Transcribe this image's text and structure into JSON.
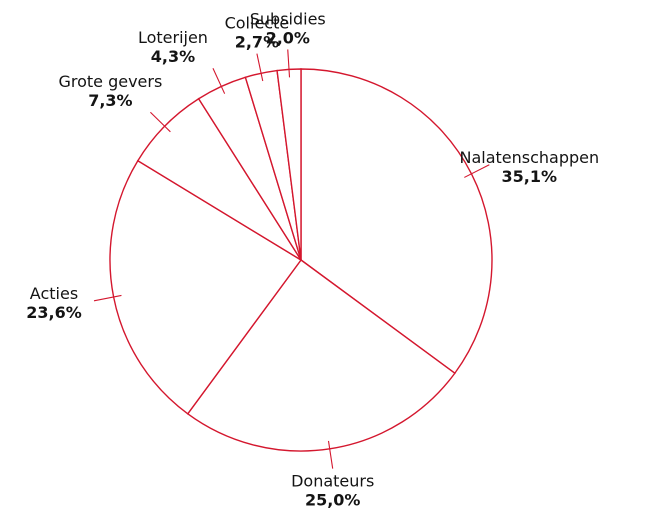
{
  "chart_data": {
    "type": "pie",
    "title": "",
    "start": "12 o'clock, clockwise",
    "colors": {
      "stroke": "#d4172e",
      "fill": "#ffffff",
      "text": "#141414"
    },
    "slices": [
      {
        "label": "Nalatenschappen",
        "value": 35.1,
        "value_label": "35,1%"
      },
      {
        "label": "Donateurs",
        "value": 25.0,
        "value_label": "25,0%"
      },
      {
        "label": "Acties",
        "value": 23.6,
        "value_label": "23,6%"
      },
      {
        "label": "Grote gevers",
        "value": 7.3,
        "value_label": "7,3%"
      },
      {
        "label": "Loterijen",
        "value": 4.3,
        "value_label": "4,3%"
      },
      {
        "label": "Collecte",
        "value": 2.7,
        "value_label": "2,7%"
      },
      {
        "label": "Subsidies",
        "value": 2.0,
        "value_label": "2,0%"
      }
    ]
  }
}
